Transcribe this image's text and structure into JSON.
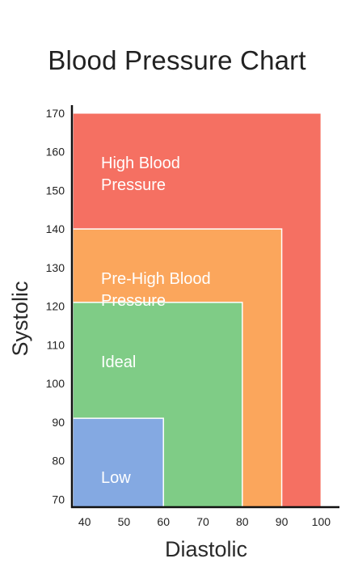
{
  "chart_data": {
    "type": "area",
    "title": "Blood Pressure Chart",
    "xlabel": "Diastolic",
    "ylabel": "Systolic",
    "xlim": [
      37,
      103
    ],
    "ylim": [
      68,
      171
    ],
    "x_ticks": [
      40,
      50,
      60,
      70,
      80,
      90,
      100
    ],
    "y_ticks": [
      70,
      80,
      90,
      100,
      110,
      120,
      130,
      140,
      150,
      160,
      170
    ],
    "regions": [
      {
        "label_lines": [
          "High Blood",
          "Pressure"
        ],
        "x_max": 100,
        "y_max": 170,
        "color": "#f57062"
      },
      {
        "label_lines": [
          "Pre-High Blood",
          "Pressure"
        ],
        "x_max": 90,
        "y_max": 140,
        "color": "#fba65c"
      },
      {
        "label_lines": [
          "Ideal"
        ],
        "x_max": 80,
        "y_max": 121,
        "color": "#7fcc86"
      },
      {
        "label_lines": [
          "Low"
        ],
        "x_max": 60,
        "y_max": 91,
        "color": "#84a9e2"
      }
    ],
    "grid": false,
    "legend": "none"
  }
}
